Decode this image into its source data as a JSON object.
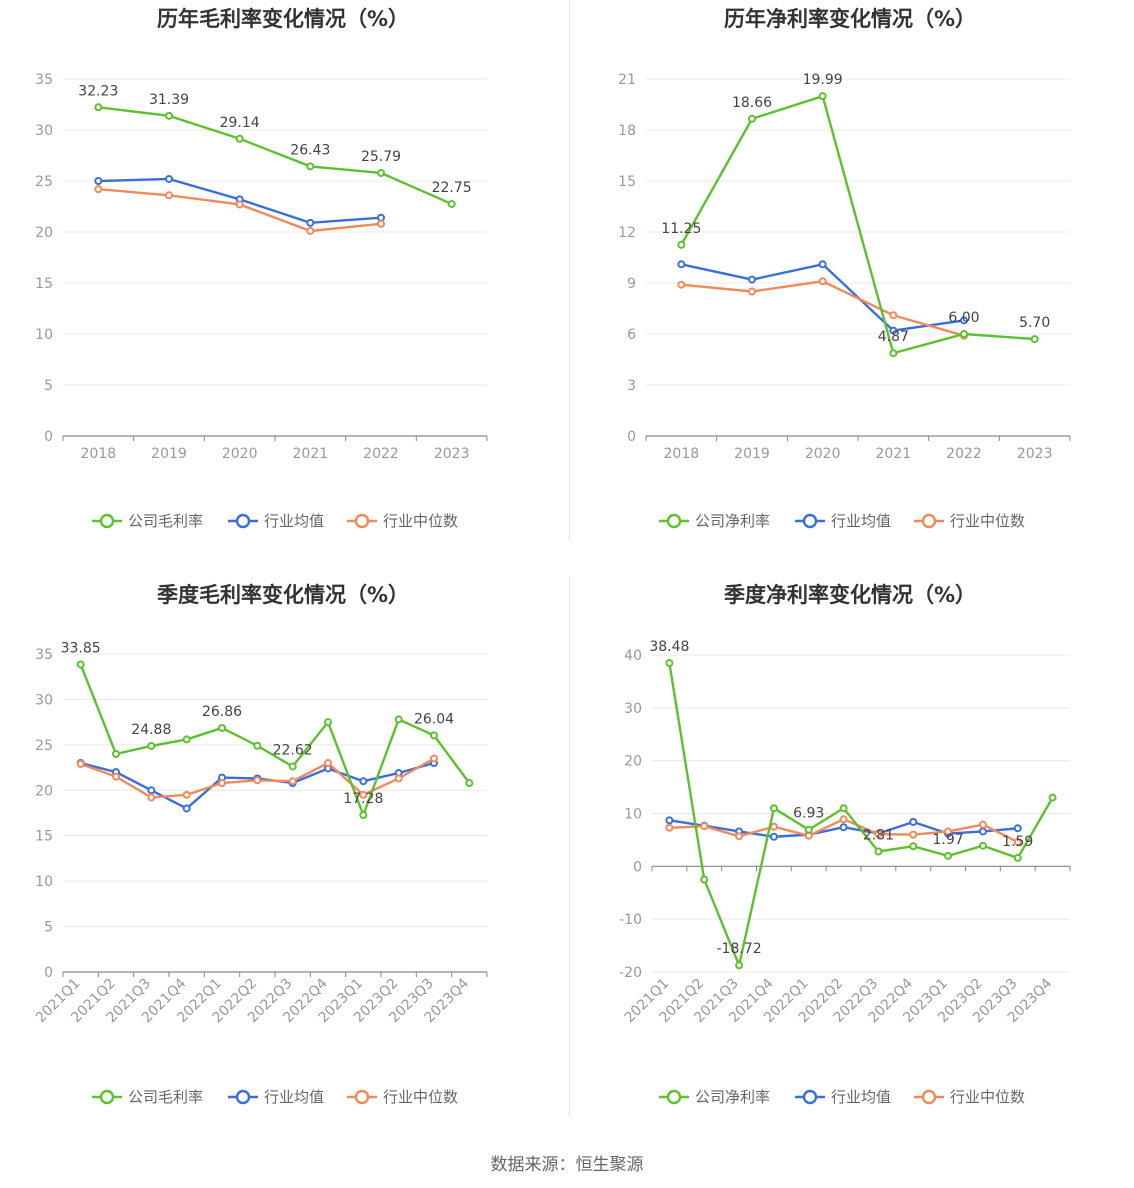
{
  "source": "数据来源：恒生聚源",
  "colors": {
    "company": "#5dc12f",
    "avg": "#3a6fd8",
    "median": "#f08a5a"
  },
  "chart_data": [
    {
      "type": "line",
      "title": "历年毛利率变化情况（%）",
      "categories": [
        "2018",
        "2019",
        "2020",
        "2021",
        "2022",
        "2023"
      ],
      "ylim": [
        0,
        35
      ],
      "yticks": [
        0,
        5,
        10,
        15,
        20,
        25,
        30,
        35
      ],
      "series": [
        {
          "name": "公司毛利率",
          "values": [
            32.23,
            31.39,
            29.14,
            26.43,
            25.79,
            22.75
          ],
          "labels": [
            "32.23",
            "31.39",
            "29.14",
            "26.43",
            "25.79",
            "22.75"
          ]
        },
        {
          "name": "行业均值",
          "values": [
            25.0,
            25.2,
            23.2,
            20.9,
            21.4,
            null
          ]
        },
        {
          "name": "行业中位数",
          "values": [
            24.2,
            23.6,
            22.7,
            20.1,
            20.8,
            null
          ]
        }
      ],
      "legend": "bottom-center",
      "grid": true
    },
    {
      "type": "line",
      "title": "历年净利率变化情况（%）",
      "categories": [
        "2018",
        "2019",
        "2020",
        "2021",
        "2022",
        "2023"
      ],
      "ylim": [
        0,
        21
      ],
      "yticks": [
        0,
        3,
        6,
        9,
        12,
        15,
        18,
        21
      ],
      "series": [
        {
          "name": "公司净利率",
          "values": [
            11.25,
            18.66,
            19.99,
            4.87,
            6.0,
            5.7
          ],
          "labels": [
            "11.25",
            "18.66",
            "19.99",
            "4.87",
            "6.00",
            "5.70"
          ]
        },
        {
          "name": "行业均值",
          "values": [
            10.1,
            9.2,
            10.1,
            6.2,
            6.8,
            null
          ]
        },
        {
          "name": "行业中位数",
          "values": [
            8.9,
            8.5,
            9.1,
            7.1,
            5.9,
            null
          ]
        }
      ],
      "legend": "bottom-center",
      "grid": true
    },
    {
      "type": "line",
      "title": "季度毛利率变化情况（%）",
      "categories": [
        "2021Q1",
        "2021Q2",
        "2021Q3",
        "2021Q4",
        "2022Q1",
        "2022Q2",
        "2022Q3",
        "2022Q4",
        "2023Q1",
        "2023Q2",
        "2023Q3",
        "2023Q4"
      ],
      "ylim": [
        0,
        35
      ],
      "yticks": [
        0,
        5,
        10,
        15,
        20,
        25,
        30,
        35
      ],
      "series": [
        {
          "name": "公司毛利率",
          "values": [
            33.85,
            24.0,
            24.88,
            25.6,
            26.86,
            24.9,
            22.62,
            27.5,
            17.28,
            27.8,
            26.04,
            20.8
          ],
          "labels": [
            "33.85",
            null,
            "24.88",
            null,
            "26.86",
            null,
            "22.62",
            null,
            "17.28",
            null,
            "26.04",
            null
          ]
        },
        {
          "name": "行业均值",
          "values": [
            23.0,
            22.0,
            20.0,
            18.0,
            21.4,
            21.3,
            20.8,
            22.4,
            21.0,
            21.9,
            23.0,
            null
          ]
        },
        {
          "name": "行业中位数",
          "values": [
            22.9,
            21.5,
            19.2,
            19.5,
            20.8,
            21.1,
            21.0,
            23.0,
            19.5,
            21.3,
            23.5,
            null
          ]
        }
      ],
      "legend": "bottom-center",
      "grid": true
    },
    {
      "type": "line",
      "title": "季度净利率变化情况（%）",
      "categories": [
        "2021Q1",
        "2021Q2",
        "2021Q3",
        "2021Q4",
        "2022Q1",
        "2022Q2",
        "2022Q3",
        "2022Q4",
        "2023Q1",
        "2023Q2",
        "2023Q3",
        "2023Q4"
      ],
      "ylim": [
        -20,
        40
      ],
      "yticks": [
        -20,
        -10,
        0,
        10,
        20,
        30,
        40
      ],
      "series": [
        {
          "name": "公司净利率",
          "values": [
            38.48,
            -2.5,
            -18.72,
            11.0,
            6.93,
            11.0,
            2.81,
            3.8,
            1.97,
            3.9,
            1.59,
            13.0
          ],
          "labels": [
            "38.48",
            null,
            "-18.72",
            null,
            "6.93",
            null,
            "2.81",
            null,
            "1.97",
            null,
            "1.59",
            null
          ]
        },
        {
          "name": "行业均值",
          "values": [
            8.7,
            7.7,
            6.6,
            5.6,
            6.0,
            7.4,
            6.2,
            8.4,
            6.2,
            6.6,
            7.2,
            null
          ]
        },
        {
          "name": "行业中位数",
          "values": [
            7.3,
            7.6,
            5.7,
            7.5,
            5.8,
            8.9,
            6.1,
            6.0,
            6.6,
            7.9,
            4.6,
            null
          ]
        }
      ],
      "legend": "bottom-center",
      "grid": true
    }
  ]
}
